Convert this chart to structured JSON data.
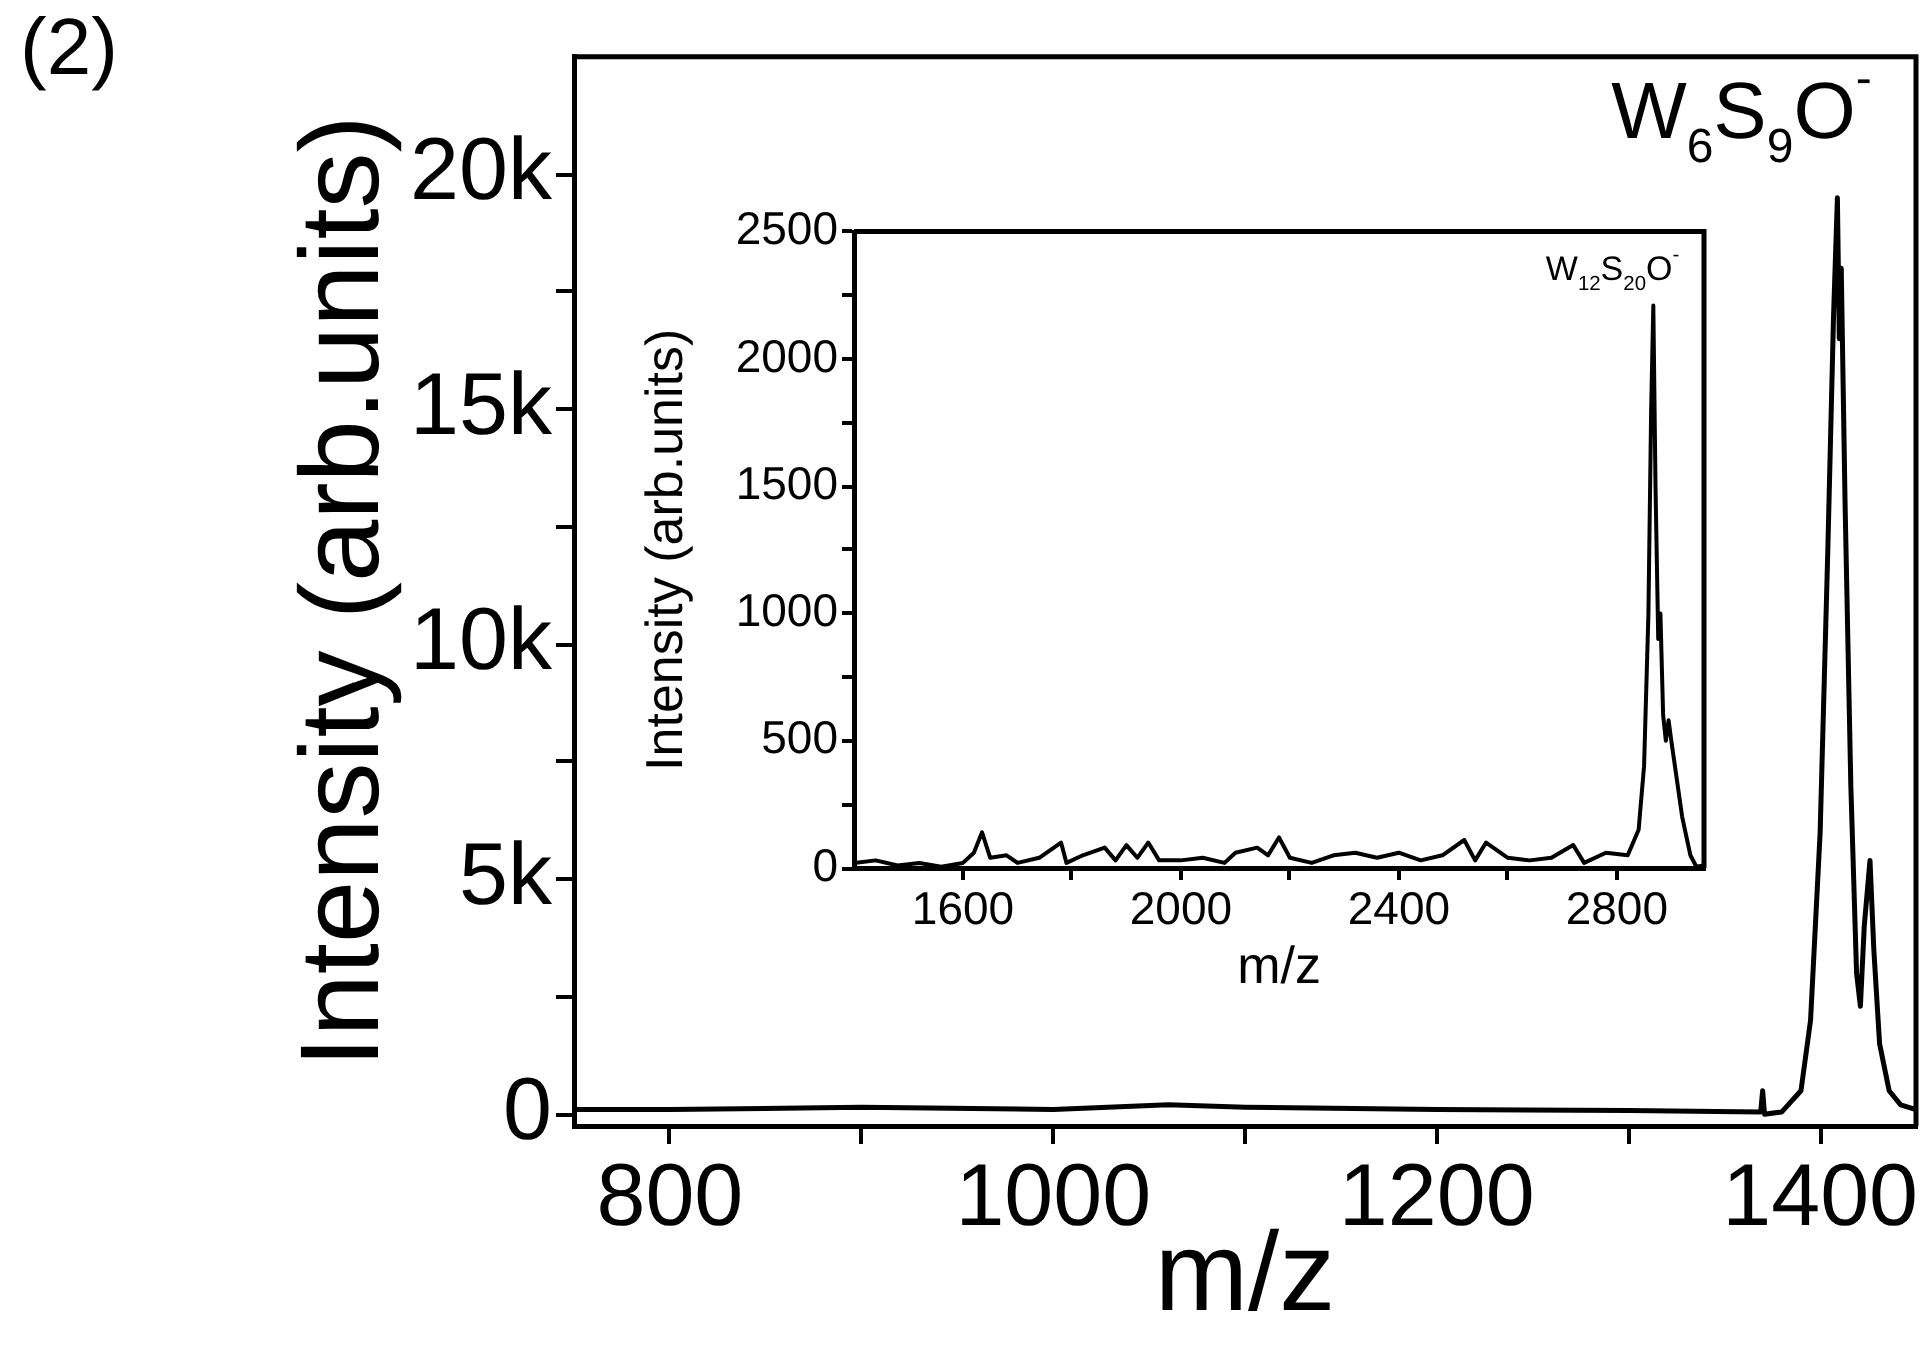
{
  "chart_data": [
    {
      "type": "line",
      "xlabel": "m/z",
      "ylabel": "Intensity (arb.units)",
      "xlim": [
        750,
        1450
      ],
      "ylim": [
        -250,
        22500
      ],
      "xticks": [
        800,
        {
          "value": 900,
          "label": null
        },
        1000,
        {
          "value": 1100,
          "label": null
        },
        1200,
        {
          "value": 1300,
          "label": null
        },
        1400
      ],
      "yticks": [
        0,
        {
          "value": 2500,
          "label": null
        },
        {
          "value": 5000,
          "label": "5k"
        },
        {
          "value": 7500,
          "label": null
        },
        {
          "value": 10000,
          "label": "10k"
        },
        {
          "value": 12500,
          "label": null
        },
        {
          "value": 15000,
          "label": "15k"
        },
        {
          "value": 17500,
          "label": null
        },
        {
          "value": 20000,
          "label": "20k"
        }
      ],
      "grid": false,
      "legend": false,
      "marker": "none",
      "line_style": "solid",
      "series": [
        {
          "color": "#000000",
          "x": [
            750,
            800,
            900,
            1000,
            1060,
            1100,
            1200,
            1300,
            1369,
            1370,
            1371,
            1380,
            1390,
            1395,
            1400,
            1404,
            1407,
            1409,
            1410,
            1411,
            1413,
            1416,
            1419,
            1421,
            1423,
            1426,
            1428,
            1431,
            1436,
            1442,
            1450
          ],
          "values": [
            100,
            100,
            150,
            100,
            200,
            150,
            100,
            80,
            50,
            500,
            0,
            50,
            500,
            2000,
            6000,
            12000,
            17000,
            19500,
            16500,
            18000,
            13000,
            7000,
            3000,
            2300,
            4000,
            5400,
            3500,
            1500,
            500,
            200,
            100
          ]
        }
      ],
      "annotations": [
        "(2)",
        {
          "text": "W$_{6}$S$_{9}$O$^{-}$",
          "x": 1409,
          "y": 19500
        }
      ]
    },
    {
      "type": "line",
      "xlabel": "m/z",
      "ylabel": "Intensity (arb.units)",
      "xlim": [
        1400,
        2960
      ],
      "ylim": [
        0,
        2500
      ],
      "xticks": [
        1600,
        {
          "value": 1800,
          "label": null
        },
        2000,
        {
          "value": 2200,
          "label": null
        },
        2400,
        {
          "value": 2600,
          "label": null
        },
        2800
      ],
      "yticks": [
        0,
        {
          "value": 250,
          "label": null
        },
        500,
        {
          "value": 750,
          "label": null
        },
        1000,
        {
          "value": 1250,
          "label": null
        },
        1500,
        {
          "value": 1750,
          "label": null
        },
        2000,
        {
          "value": 2250,
          "label": null
        },
        2500
      ],
      "grid": false,
      "legend": false,
      "marker": "none",
      "line_style": "solid",
      "series": [
        {
          "color": "#000000",
          "x": [
            1400,
            1440,
            1480,
            1520,
            1560,
            1600,
            1620,
            1635,
            1650,
            1680,
            1700,
            1740,
            1780,
            1790,
            1820,
            1860,
            1880,
            1900,
            1920,
            1940,
            1960,
            2000,
            2040,
            2080,
            2100,
            2140,
            2160,
            2180,
            2200,
            2240,
            2280,
            2320,
            2360,
            2400,
            2440,
            2480,
            2520,
            2540,
            2560,
            2600,
            2640,
            2680,
            2720,
            2740,
            2780,
            2820,
            2840,
            2850,
            2858,
            2863,
            2867,
            2871,
            2876,
            2880,
            2885,
            2890,
            2895,
            2900,
            2910,
            2920,
            2935,
            2946,
            2960
          ],
          "values": [
            20,
            30,
            10,
            20,
            5,
            20,
            60,
            140,
            40,
            50,
            20,
            40,
            100,
            20,
            50,
            80,
            30,
            90,
            40,
            100,
            30,
            30,
            40,
            20,
            60,
            80,
            50,
            120,
            40,
            20,
            50,
            60,
            40,
            60,
            30,
            50,
            110,
            30,
            100,
            40,
            30,
            40,
            90,
            20,
            60,
            50,
            150,
            400,
            1000,
            1800,
            2210,
            1500,
            900,
            1000,
            600,
            500,
            580,
            500,
            350,
            200,
            50,
            5,
            10
          ]
        }
      ],
      "annotations": [
        {
          "text": "W$_{12}$S$_{20}$O$^{-}$",
          "x": 2867,
          "y": 2210
        }
      ]
    }
  ]
}
